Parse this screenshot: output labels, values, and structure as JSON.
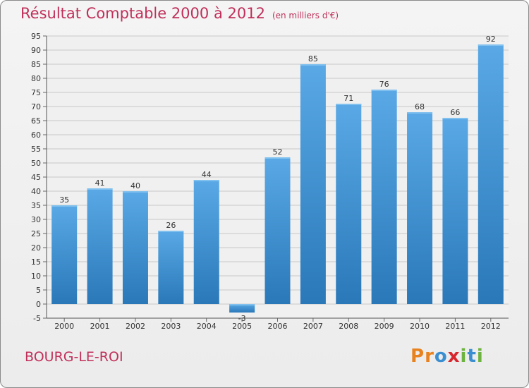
{
  "header": {
    "title": "Résultat Comptable 2000 à 2012",
    "unit": "(en milliers d'€)"
  },
  "footer": {
    "location": "BOURG-LE-ROI",
    "brand": "Proxiti",
    "brand_letters": [
      "P",
      "r",
      "o",
      "x",
      "i",
      "t",
      "i"
    ],
    "brand_colors": [
      "#e8821e",
      "#e8821e",
      "#3b8fd0",
      "#d8262e",
      "#6db33f",
      "#3b8fd0",
      "#6db33f"
    ]
  },
  "colors": {
    "title": "#c0305a",
    "bar_light": "#5aa9e6",
    "bar_dark": "#2a78b8",
    "grid": "#c8c8c8"
  },
  "chart_data": {
    "type": "bar",
    "title": "Résultat Comptable 2000 à 2012",
    "xlabel": "",
    "ylabel": "en milliers d'€",
    "categories": [
      "2000",
      "2001",
      "2002",
      "2003",
      "2004",
      "2005",
      "2006",
      "2007",
      "2008",
      "2009",
      "2010",
      "2011",
      "2012"
    ],
    "values": [
      35,
      41,
      40,
      26,
      44,
      -3,
      52,
      85,
      71,
      76,
      68,
      66,
      92
    ],
    "data_labels": [
      "35",
      "41",
      "40",
      "26",
      "44",
      "-3",
      "52",
      "85",
      "71",
      "76",
      "68",
      "66",
      "92"
    ],
    "ylim": [
      -5,
      95
    ],
    "ytick_step": 5,
    "grid": true
  }
}
